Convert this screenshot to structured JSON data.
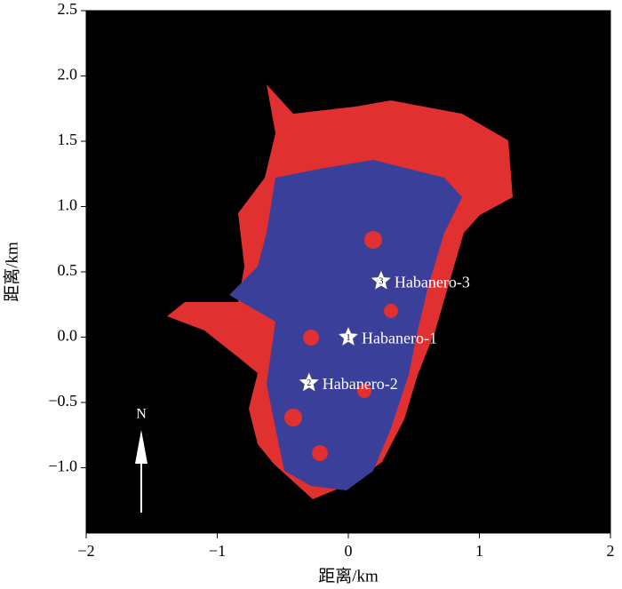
{
  "chart_data": {
    "type": "scatter",
    "xlabel": "距离/km",
    "ylabel": "距离/km",
    "xlim": [
      -2,
      2
    ],
    "ylim": [
      -1.5,
      2.5
    ],
    "xticks": [
      {
        "value": -2,
        "label": "−2"
      },
      {
        "value": -1,
        "label": "−1"
      },
      0,
      1,
      2
    ],
    "yticks": [
      {
        "value": -1,
        "label": "−1.0"
      },
      {
        "value": -0.5,
        "label": "−0.5"
      },
      {
        "value": 0,
        "label": "0.0"
      },
      0.5,
      {
        "value": 1,
        "label": "1.0"
      },
      1.5,
      {
        "value": 2,
        "label": "2.0"
      },
      2.5
    ],
    "series": [
      {
        "name": "wells",
        "color": "#ffffff",
        "x": [
          0,
          -0.3,
          0.25
        ],
        "y": [
          0,
          -0.35,
          0.43
        ],
        "labels": [
          "Habanero-1",
          "Habanero-2",
          "Habanero-3"
        ],
        "numbers": [
          "1",
          "2",
          "3"
        ]
      }
    ],
    "north_label": "N"
  }
}
